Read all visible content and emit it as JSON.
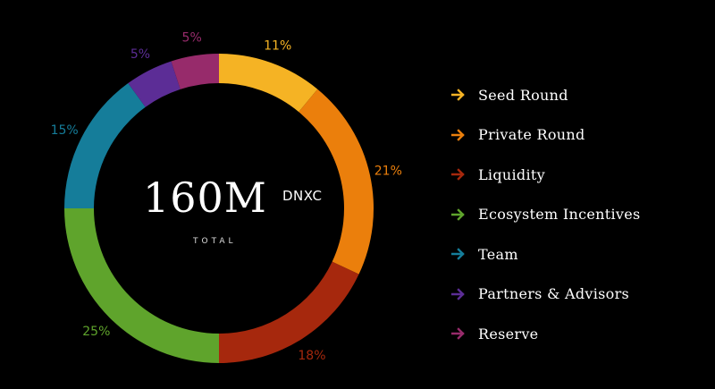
{
  "chart_data": {
    "type": "pie",
    "variant": "donut",
    "center": {
      "value": "160M",
      "unit": "DNXC",
      "caption": "TOTAL"
    },
    "categories": [
      "Seed Round",
      "Private Round",
      "Liquidity",
      "Ecosystem Incentives",
      "Team",
      "Partners & Advisors",
      "Reserve"
    ],
    "values": [
      11,
      21,
      18,
      25,
      15,
      5,
      5
    ],
    "labels": [
      "11%",
      "21%",
      "18%",
      "25%",
      "15%",
      "5%",
      "5%"
    ],
    "colors": [
      "#f5b324",
      "#eb7f0c",
      "#a6280d",
      "#5fa42c",
      "#157d9a",
      "#5c2d96",
      "#972b6b"
    ],
    "legend_position": "right"
  }
}
